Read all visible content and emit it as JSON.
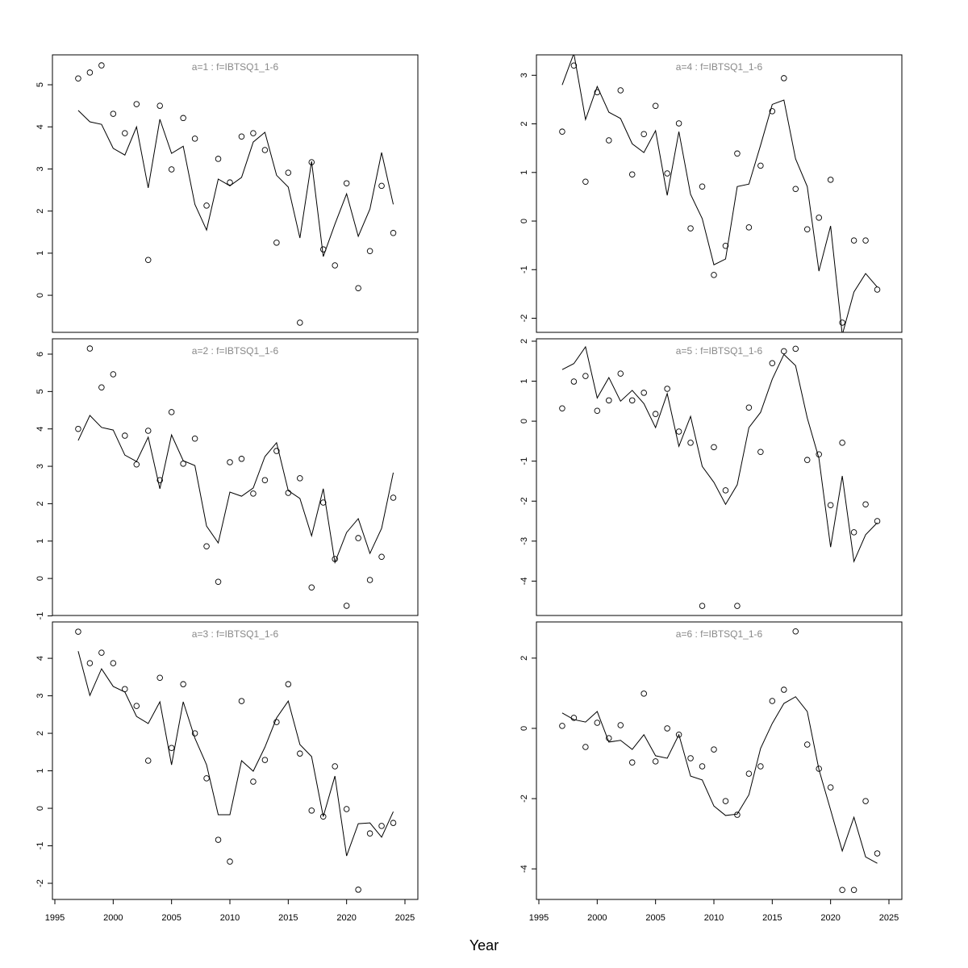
{
  "chart_data": {
    "type": "scatter",
    "xlabel": "Year",
    "x_ticks": [
      1995,
      2000,
      2005,
      2010,
      2015,
      2020,
      2025
    ],
    "xlim": [
      1995,
      2025
    ],
    "grid": false,
    "years": [
      1997,
      1998,
      1999,
      2000,
      2001,
      2002,
      2003,
      2004,
      2005,
      2006,
      2007,
      2008,
      2009,
      2010,
      2011,
      2012,
      2013,
      2014,
      2015,
      2016,
      2017,
      2018,
      2019,
      2020,
      2021,
      2022,
      2023,
      2024
    ],
    "panels": [
      {
        "title": "a=1  :  f=IBTSQ1_1-6",
        "ylim": [
          -0.88,
          5.71
        ],
        "y_ticks": [
          0,
          1,
          2,
          3,
          4,
          5
        ],
        "points": [
          5.15,
          5.29,
          5.46,
          4.31,
          3.85,
          4.54,
          0.84,
          4.5,
          2.99,
          4.21,
          3.72,
          2.13,
          3.24,
          2.68,
          3.77,
          3.85,
          3.45,
          1.25,
          2.91,
          -0.65,
          3.16,
          1.09,
          0.71,
          2.66,
          0.17,
          1.05,
          2.6,
          1.48
        ],
        "line": [
          4.39,
          4.12,
          4.06,
          3.49,
          3.33,
          4.0,
          2.55,
          4.18,
          3.37,
          3.54,
          2.16,
          1.55,
          2.76,
          2.6,
          2.8,
          3.64,
          3.87,
          2.85,
          2.57,
          1.36,
          3.18,
          0.92,
          1.69,
          2.41,
          1.4,
          2.05,
          3.39,
          2.16
        ]
      },
      {
        "title": "a=2  :  f=IBTSQ1_1-6",
        "ylim": [
          -0.99,
          6.41
        ],
        "y_ticks": [
          -1,
          0,
          1,
          2,
          3,
          4,
          5,
          6
        ],
        "points": [
          4.0,
          6.15,
          5.11,
          5.46,
          3.82,
          3.05,
          3.95,
          2.63,
          4.45,
          3.07,
          3.74,
          0.86,
          -0.09,
          3.11,
          3.2,
          2.27,
          2.63,
          3.41,
          2.29,
          2.68,
          -0.24,
          2.03,
          0.52,
          -0.73,
          1.08,
          -0.04,
          0.58,
          2.16
        ],
        "line": [
          3.69,
          4.36,
          4.04,
          3.97,
          3.3,
          3.13,
          3.78,
          2.4,
          3.84,
          3.15,
          3.02,
          1.4,
          0.95,
          2.31,
          2.2,
          2.42,
          3.26,
          3.63,
          2.35,
          2.14,
          1.14,
          2.4,
          0.43,
          1.23,
          1.6,
          0.67,
          1.34,
          2.83
        ]
      },
      {
        "title": "a=3  :  f=IBTSQ1_1-6",
        "ylim": [
          -2.43,
          4.97
        ],
        "y_ticks": [
          -2,
          -1,
          0,
          1,
          2,
          3,
          4
        ],
        "points": [
          4.71,
          3.87,
          4.15,
          3.87,
          3.18,
          2.73,
          1.27,
          3.48,
          1.61,
          3.31,
          2.0,
          0.8,
          -0.84,
          -1.42,
          2.86,
          0.71,
          1.29,
          2.3,
          3.31,
          1.46,
          -0.06,
          -0.22,
          1.12,
          -0.02,
          -2.17,
          -0.67,
          -0.47,
          -0.39
        ],
        "line": [
          4.19,
          3.01,
          3.72,
          3.25,
          3.1,
          2.45,
          2.26,
          2.84,
          1.16,
          2.84,
          1.87,
          1.16,
          -0.17,
          -0.17,
          1.27,
          0.99,
          1.63,
          2.41,
          2.86,
          1.7,
          1.38,
          -0.22,
          0.86,
          -1.27,
          -0.41,
          -0.39,
          -0.77,
          -0.09
        ]
      },
      {
        "title": "a=4  :  f=IBTSQ1_1-6",
        "ylim": [
          -2.29,
          3.42
        ],
        "y_ticks": [
          -2,
          -1,
          0,
          1,
          2,
          3
        ],
        "points": [
          1.84,
          3.2,
          0.81,
          2.65,
          1.66,
          2.69,
          0.96,
          1.79,
          2.37,
          0.98,
          2.01,
          -0.15,
          0.71,
          -1.11,
          -0.51,
          1.39,
          -0.13,
          1.14,
          2.26,
          2.94,
          0.66,
          -0.17,
          0.07,
          0.85,
          -2.09,
          -0.4,
          -0.4,
          -1.41
        ],
        "line": [
          2.8,
          3.45,
          2.09,
          2.77,
          2.24,
          2.11,
          1.59,
          1.41,
          1.86,
          0.53,
          1.84,
          0.55,
          0.05,
          -0.9,
          -0.78,
          0.71,
          0.76,
          1.56,
          2.4,
          2.49,
          1.28,
          0.71,
          -1.03,
          -0.1,
          -2.34,
          -1.46,
          -1.08,
          -1.36
        ]
      },
      {
        "title": "a=5  :  f=IBTSQ1_1-6",
        "ylim": [
          -4.86,
          2.06
        ],
        "y_ticks": [
          -4,
          -3,
          -2,
          -1,
          0,
          1,
          2
        ],
        "points": [
          0.32,
          0.99,
          1.13,
          0.26,
          0.52,
          1.19,
          0.52,
          0.71,
          0.18,
          0.81,
          -0.26,
          -0.54,
          -4.62,
          -0.65,
          -1.73,
          -4.62,
          0.34,
          -0.77,
          1.45,
          1.75,
          1.81,
          -0.97,
          -0.83,
          -2.1,
          -0.54,
          -2.78,
          -2.08,
          -2.5
        ],
        "line": [
          1.29,
          1.44,
          1.86,
          0.58,
          1.09,
          0.5,
          0.77,
          0.44,
          -0.16,
          0.69,
          -0.63,
          0.12,
          -1.13,
          -1.53,
          -2.08,
          -1.59,
          -0.16,
          0.22,
          1.05,
          1.67,
          1.39,
          0.08,
          -0.93,
          -3.15,
          -1.37,
          -3.51,
          -2.84,
          -2.54
        ]
      },
      {
        "title": "a=6  :  f=IBTSQ1_1-6",
        "ylim": [
          -4.87,
          3.03
        ],
        "y_ticks": [
          -4,
          -2,
          0,
          2
        ],
        "points": [
          0.07,
          0.3,
          -0.53,
          0.16,
          -0.28,
          0.09,
          -0.97,
          0.99,
          -0.94,
          0.0,
          -0.18,
          -0.85,
          -1.08,
          -0.6,
          -2.07,
          -2.46,
          -1.29,
          -1.08,
          0.78,
          1.1,
          2.76,
          -0.46,
          -1.15,
          -1.68,
          -4.6,
          -4.6,
          -2.07,
          -3.56
        ],
        "line": [
          0.44,
          0.25,
          0.18,
          0.48,
          -0.39,
          -0.34,
          -0.6,
          -0.18,
          -0.78,
          -0.85,
          -0.18,
          -1.36,
          -1.47,
          -2.21,
          -2.48,
          -2.44,
          -1.89,
          -0.57,
          0.14,
          0.71,
          0.9,
          0.48,
          -1.17,
          -2.32,
          -3.49,
          -2.53,
          -3.66,
          -3.84
        ]
      }
    ]
  }
}
